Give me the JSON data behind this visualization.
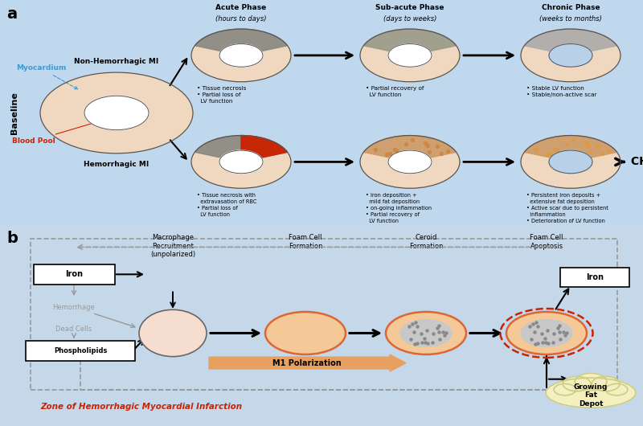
{
  "panel_a_bg": "#c0d8ee",
  "panel_b_bg": "#c5d8ea",
  "fig_bg": "#d0e4f4",
  "panel_a_label": "a",
  "panel_b_label": "b",
  "headers": [
    "Acute Phase\n(hours to days)",
    "Sub-acute Phase\n(days to weeks)",
    "Chronic Phase\n(weeks to months)"
  ],
  "col_headers_b": [
    "Macrophage\nRecruitment\n(unpolarized)",
    "Foam Cell\nFormation",
    "Ceroid\nFormation",
    "Foam Cell\nApoptosis"
  ],
  "non_hem_bullets_acute": "• Tissue necrosis\n• Partial loss of\n  LV function",
  "non_hem_bullets_sub": "• Partial recovery of\n  LV function",
  "non_hem_bullets_chr": "• Stable LV function\n• Stable/non-active scar",
  "hem_bullets_acute": "• Tissue necrosis with\n  extravasation of RBC\n• Partial loss of\n  LV function",
  "hem_bullets_sub": "• Iron deposition +\n  mild fat deposition\n• on-going inflammation\n• Partial recovery of\n  LV function",
  "hem_bullets_chr": "• Persistent iron deposits +\n  extensive fat deposition\n• Active scar due to persistent\n  inflammation\n• Deterioration of LV function",
  "zone_label": "Zone of Hemorrhagic Myocardial Infarction",
  "colors": {
    "myocardium_fill": "#f0d8c0",
    "blood_pool": "#ffffff",
    "necrosis": "#888880",
    "necrosis_sub": "#999990",
    "hemorrhage_red": "#cc2200",
    "iron_dot": "#cc8844",
    "fat_dot": "#dd9944",
    "blue_inner": "#b8d0e8",
    "text_blue": "#4499cc",
    "text_red": "#cc2200",
    "text_gray": "#999999",
    "arrow_black": "#111111",
    "cell_pink": "#f5ddd0",
    "cell_orange_fill": "#f5c898",
    "cell_orange_outline": "#dd6633",
    "cell_gray_inner": "#c8c8c8",
    "cloud_fill": "#f5f0c0",
    "cloud_outline": "#cccc88",
    "m1_arrow": "#e8a060",
    "dashed_color": "#999999"
  }
}
